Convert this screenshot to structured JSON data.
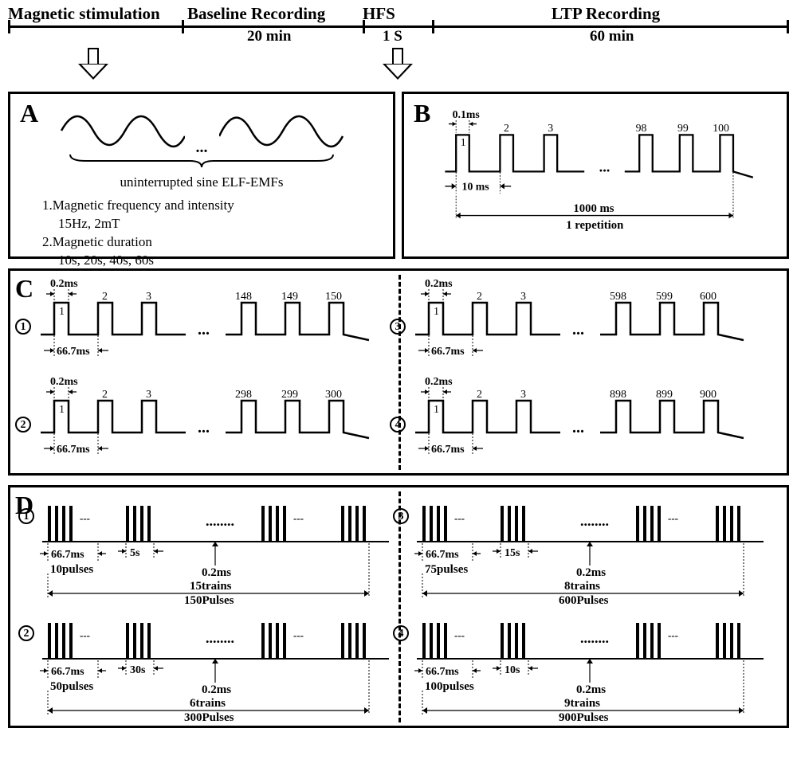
{
  "timeline": {
    "phases": [
      "Magnetic stimulation",
      "Baseline Recording",
      "HFS",
      "LTP Recording"
    ],
    "durations": [
      "20 min",
      "1 S",
      "60 min"
    ]
  },
  "panelA": {
    "letter": "A",
    "caption": "uninterrupted sine ELF-EMFs",
    "item1_header": "1.Magnetic frequency and intensity",
    "item1_val": "15Hz, 2mT",
    "item2_header": "2.Magnetic duration",
    "item2_val": "10s, 20s, 40s, 60s",
    "sine_color": "#000000",
    "sine_stroke": 2.5
  },
  "panelB": {
    "letter": "B",
    "pulse_width_label": "0.1ms",
    "period_label": "10 ms",
    "total_label": "1000 ms",
    "rep_label": "1 repetition",
    "first_numbers": [
      "1",
      "2",
      "3"
    ],
    "last_numbers": [
      "98",
      "99",
      "100"
    ]
  },
  "panelC": {
    "letter": "C",
    "pulse_width_label": "0.2ms",
    "period_label": "66.7ms",
    "sets": [
      {
        "circ": "1",
        "first": [
          "1",
          "2",
          "3"
        ],
        "last": [
          "148",
          "149",
          "150"
        ]
      },
      {
        "circ": "2",
        "first": [
          "1",
          "2",
          "3"
        ],
        "last": [
          "298",
          "299",
          "300"
        ]
      },
      {
        "circ": "3",
        "first": [
          "1",
          "2",
          "3"
        ],
        "last": [
          "598",
          "599",
          "600"
        ]
      },
      {
        "circ": "4",
        "first": [
          "1",
          "2",
          "3"
        ],
        "last": [
          "898",
          "899",
          "900"
        ]
      }
    ]
  },
  "panelD": {
    "letter": "D",
    "pulse_width_label": "0.2ms",
    "period_label": "66.7ms",
    "sets": [
      {
        "circ": "1",
        "gap": "5s",
        "pulses_per": "10pulses",
        "trains": "15trains",
        "total": "150Pulses"
      },
      {
        "circ": "2",
        "gap": "30s",
        "pulses_per": "50pulses",
        "trains": "6trains",
        "total": "300Pulses"
      },
      {
        "circ": "3",
        "gap": "15s",
        "pulses_per": "75pulses",
        "trains": "8trains",
        "total": "600Pulses"
      },
      {
        "circ": "4",
        "gap": "10s",
        "pulses_per": "100pulses",
        "trains": "9trains",
        "total": "900Pulses"
      }
    ]
  },
  "colors": {
    "stroke": "#000000",
    "bg": "#ffffff"
  }
}
